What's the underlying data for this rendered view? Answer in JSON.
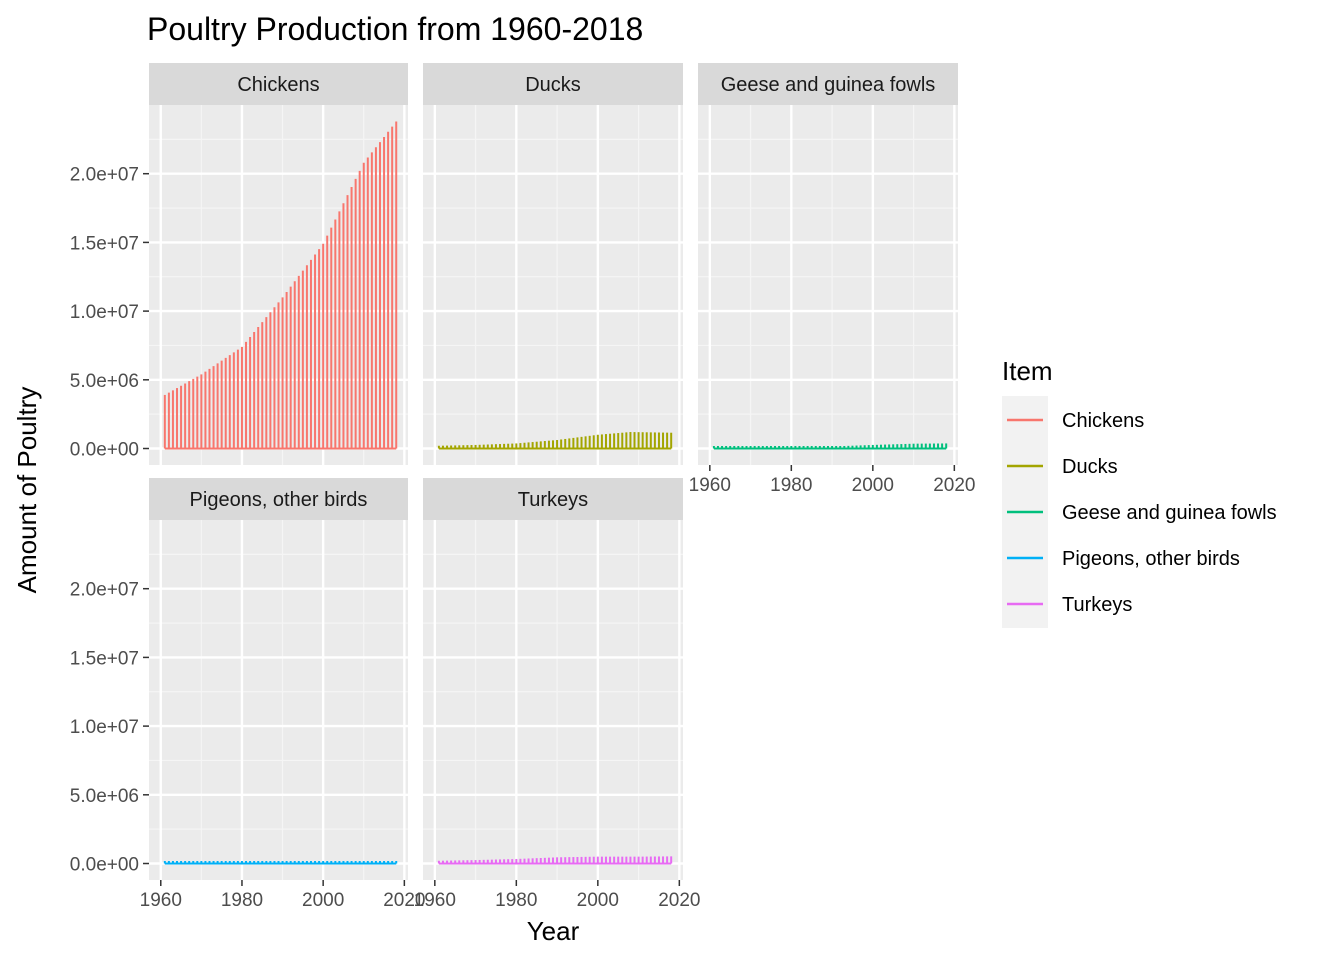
{
  "chart_data": {
    "type": "line",
    "title": "Poultry Production from 1960-2018",
    "xlabel": "Year",
    "ylabel": "Amount of Poultry",
    "xlim": [
      1960,
      2018
    ],
    "ylim": [
      0,
      24000000
    ],
    "x_ticks": [
      1960,
      1980,
      2000,
      2020
    ],
    "x_tick_labels": [
      "1960",
      "1980",
      "2000",
      "2020"
    ],
    "y_ticks": [
      0,
      5000000,
      10000000,
      15000000,
      20000000
    ],
    "y_tick_labels": [
      "0.0e+00",
      "5.0e+06",
      "1.0e+07",
      "1.5e+07",
      "2.0e+07"
    ],
    "grid": true,
    "legend": {
      "title": "Item",
      "position": "right"
    },
    "series": [
      {
        "name": "Chickens",
        "color": "#F8766D",
        "x": [
          1961,
          1970,
          1980,
          1990,
          2000,
          2010,
          2018
        ],
        "max": [
          3900000,
          5400000,
          7400000,
          11000000,
          14900000,
          20800000,
          23800000
        ]
      },
      {
        "name": "Ducks",
        "color": "#A3A500",
        "x": [
          1961,
          1970,
          1980,
          1990,
          2000,
          2008,
          2018
        ],
        "max": [
          200000,
          260000,
          370000,
          620000,
          1000000,
          1200000,
          1150000
        ]
      },
      {
        "name": "Geese and guinea fowls",
        "color": "#00BF7D",
        "x": [
          1961,
          1970,
          1980,
          1990,
          2000,
          2010,
          2018
        ],
        "max": [
          20000,
          40000,
          80000,
          150000,
          260000,
          350000,
          370000
        ]
      },
      {
        "name": "Pigeons, other birds",
        "color": "#00B0F6",
        "x": [
          1961,
          1980,
          2000,
          2018
        ],
        "max": [
          5000,
          5000,
          5000,
          5000
        ]
      },
      {
        "name": "Turkeys",
        "color": "#E76BF3",
        "x": [
          1961,
          1970,
          1980,
          1990,
          2000,
          2010,
          2018
        ],
        "max": [
          200000,
          250000,
          330000,
          450000,
          500000,
          500000,
          520000
        ]
      }
    ]
  }
}
